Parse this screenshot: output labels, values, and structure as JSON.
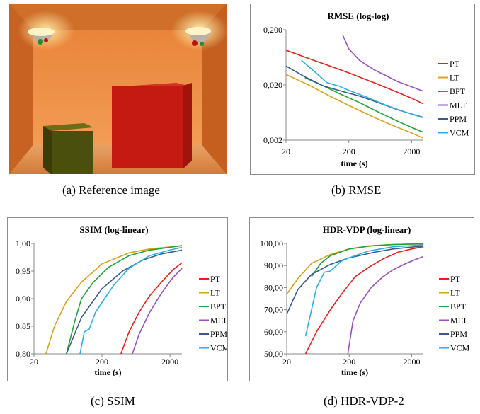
{
  "captions": {
    "a": "(a) Reference image",
    "b": "(b) RMSE",
    "c": "(c) SSIM",
    "d": "(d) HDR-VDP-2"
  },
  "reference_image": {
    "description_colors": {
      "background": "#e07a2c",
      "red_box": "#c41a12",
      "green_box": "#4a4f0e"
    }
  },
  "chart_data": [
    {
      "id": "rmse",
      "type": "line",
      "title": "RMSE (log-log)",
      "xlabel": "time (s)",
      "ylabel": "",
      "xscale": "log",
      "yscale": "log",
      "xlim": [
        20,
        3000
      ],
      "ylim": [
        0.002,
        0.2
      ],
      "xticks": [
        {
          "v": 20,
          "label": "20"
        },
        {
          "v": 200,
          "label": "200"
        },
        {
          "v": 2000,
          "label": "2000"
        }
      ],
      "yticks": [
        {
          "v": 0.002,
          "label": "0,002"
        },
        {
          "v": 0.02,
          "label": "0,020"
        },
        {
          "v": 0.2,
          "label": "0,200"
        }
      ],
      "grid": false,
      "legend": "right",
      "series": [
        {
          "name": "PT",
          "color": "#e8201c",
          "x": [
            20,
            50,
            100,
            200,
            500,
            1000,
            2000,
            3000
          ],
          "y": [
            0.085,
            0.058,
            0.044,
            0.033,
            0.022,
            0.016,
            0.0115,
            0.0092
          ]
        },
        {
          "name": "LT",
          "color": "#d8a21a",
          "x": [
            20,
            50,
            100,
            200,
            500,
            1000,
            2000,
            3000
          ],
          "y": [
            0.031,
            0.019,
            0.0125,
            0.0085,
            0.0052,
            0.0037,
            0.0027,
            0.0022
          ]
        },
        {
          "name": "BPT",
          "color": "#22a23a",
          "x": [
            40,
            80,
            150,
            300,
            600,
            1200,
            2000,
            3000
          ],
          "y": [
            0.027,
            0.019,
            0.0135,
            0.0095,
            0.0064,
            0.0044,
            0.0034,
            0.0028
          ]
        },
        {
          "name": "MLT",
          "color": "#9a50c4",
          "x": [
            160,
            200,
            300,
            500,
            800,
            1200,
            2000,
            3000
          ],
          "y": [
            0.16,
            0.09,
            0.055,
            0.038,
            0.029,
            0.023,
            0.0185,
            0.0155
          ]
        },
        {
          "name": "PPM",
          "color": "#3a5a8c",
          "x": [
            20,
            40,
            80,
            150,
            300,
            600,
            1200,
            3000
          ],
          "y": [
            0.044,
            0.028,
            0.019,
            0.0155,
            0.0125,
            0.0095,
            0.0071,
            0.0052
          ]
        },
        {
          "name": "VCM",
          "color": "#2ab0e4",
          "x": [
            35,
            60,
            90,
            140,
            200,
            400,
            800,
            1500,
            3000
          ],
          "y": [
            0.056,
            0.033,
            0.022,
            0.019,
            0.016,
            0.0118,
            0.0085,
            0.0066,
            0.0051
          ]
        }
      ]
    },
    {
      "id": "ssim",
      "type": "line",
      "title": "SSIM (log-linear)",
      "xlabel": "time (s)",
      "ylabel": "",
      "xscale": "log",
      "yscale": "linear",
      "xlim": [
        20,
        3000
      ],
      "ylim": [
        0.8,
        1.0
      ],
      "xticks": [
        {
          "v": 20,
          "label": "20"
        },
        {
          "v": 200,
          "label": "200"
        },
        {
          "v": 2000,
          "label": "2000"
        }
      ],
      "yticks": [
        {
          "v": 0.8,
          "label": "0,80"
        },
        {
          "v": 0.85,
          "label": "0,85"
        },
        {
          "v": 0.9,
          "label": "0,90"
        },
        {
          "v": 0.95,
          "label": "0,95"
        },
        {
          "v": 1.0,
          "label": "1,00"
        }
      ],
      "grid": false,
      "legend": "right",
      "series": [
        {
          "name": "PT",
          "color": "#e8201c",
          "x": [
            380,
            500,
            700,
            1000,
            1500,
            2200,
            3000
          ],
          "y": [
            0.8,
            0.84,
            0.875,
            0.905,
            0.93,
            0.952,
            0.965
          ]
        },
        {
          "name": "LT",
          "color": "#d8a21a",
          "x": [
            30,
            40,
            60,
            100,
            200,
            500,
            1000,
            3000
          ],
          "y": [
            0.8,
            0.85,
            0.895,
            0.93,
            0.963,
            0.983,
            0.99,
            0.996
          ]
        },
        {
          "name": "BPT",
          "color": "#22a23a",
          "x": [
            60,
            80,
            100,
            150,
            250,
            500,
            1000,
            3000
          ],
          "y": [
            0.8,
            0.86,
            0.9,
            0.93,
            0.957,
            0.978,
            0.988,
            0.996
          ]
        },
        {
          "name": "MLT",
          "color": "#9a50c4",
          "x": [
            560,
            700,
            1000,
            1500,
            2200,
            3000
          ],
          "y": [
            0.8,
            0.835,
            0.875,
            0.91,
            0.938,
            0.955
          ]
        },
        {
          "name": "PPM",
          "color": "#3a5a8c",
          "x": [
            60,
            100,
            200,
            400,
            800,
            1500,
            3000
          ],
          "y": [
            0.8,
            0.866,
            0.918,
            0.95,
            0.97,
            0.981,
            0.988
          ]
        },
        {
          "name": "VCM",
          "color": "#2ab0e4",
          "x": [
            95,
            110,
            130,
            160,
            200,
            300,
            500,
            1000,
            2000,
            3000
          ],
          "y": [
            0.8,
            0.84,
            0.845,
            0.875,
            0.893,
            0.925,
            0.955,
            0.978,
            0.988,
            0.993
          ]
        }
      ]
    },
    {
      "id": "hdrvdp",
      "type": "line",
      "title": "HDR-VDP (log-linear)",
      "xlabel": "time (s)",
      "ylabel": "",
      "xscale": "log",
      "yscale": "linear",
      "xlim": [
        20,
        3000
      ],
      "ylim": [
        50,
        100
      ],
      "xticks": [
        {
          "v": 20,
          "label": "20"
        },
        {
          "v": 200,
          "label": "200"
        },
        {
          "v": 2000,
          "label": "2000"
        }
      ],
      "yticks": [
        {
          "v": 50,
          "label": "50,00"
        },
        {
          "v": 60,
          "label": "60,00"
        },
        {
          "v": 70,
          "label": "70,00"
        },
        {
          "v": 80,
          "label": "80,00"
        },
        {
          "v": 90,
          "label": "90,00"
        },
        {
          "v": 100,
          "label": "100,00"
        }
      ],
      "grid": false,
      "legend": "right",
      "series": [
        {
          "name": "PT",
          "color": "#e8201c",
          "x": [
            40,
            60,
            100,
            150,
            250,
            400,
            700,
            1200,
            2000,
            3000
          ],
          "y": [
            50,
            60,
            70,
            77,
            85,
            89,
            93,
            96,
            97.5,
            98.5
          ]
        },
        {
          "name": "LT",
          "color": "#d8a21a",
          "x": [
            20,
            30,
            50,
            100,
            200,
            500,
            1000,
            3000
          ],
          "y": [
            77,
            84,
            91,
            95,
            97.5,
            99,
            99.5,
            99.8
          ]
        },
        {
          "name": "BPT",
          "color": "#22a23a",
          "x": [
            50,
            70,
            100,
            200,
            400,
            1000,
            3000
          ],
          "y": [
            85,
            91,
            94.5,
            97.5,
            98.8,
            99.5,
            99.8
          ]
        },
        {
          "name": "MLT",
          "color": "#9a50c4",
          "x": [
            190,
            230,
            300,
            450,
            700,
            1000,
            1500,
            2200,
            3000
          ],
          "y": [
            50,
            65,
            73,
            80,
            85,
            88,
            90.5,
            92.5,
            94
          ]
        },
        {
          "name": "PPM",
          "color": "#3a5a8c",
          "x": [
            20,
            30,
            50,
            100,
            200,
            500,
            1000,
            3000
          ],
          "y": [
            68,
            79,
            86,
            90.5,
            93.5,
            96,
            97.5,
            98.8
          ]
        },
        {
          "name": "VCM",
          "color": "#2ab0e4",
          "x": [
            40,
            60,
            80,
            100,
            150,
            200,
            400,
            1000,
            3000
          ],
          "y": [
            58,
            80,
            87,
            87.5,
            92,
            93.5,
            96.5,
            98.5,
            99.3
          ]
        }
      ]
    }
  ]
}
